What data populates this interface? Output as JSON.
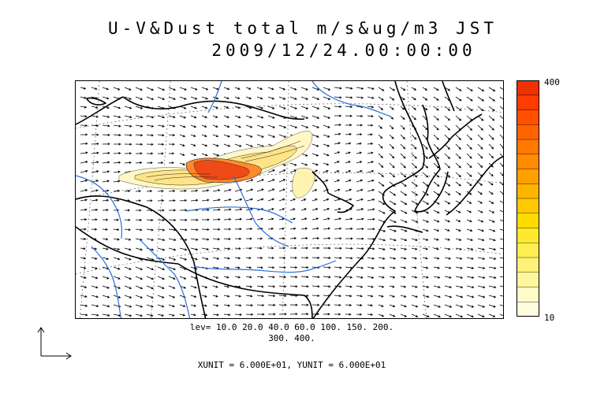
{
  "title": {
    "line1": "U-V&Dust total m/s&ug/m3 JST",
    "line2": "2009/12/24.00:00:00"
  },
  "colorbar": {
    "max_label": "400",
    "min_label": "10",
    "colors": [
      "#fffde0",
      "#fffbc8",
      "#fff7a0",
      "#fff27a",
      "#ffee50",
      "#ffe82e",
      "#ffdb00",
      "#ffc800",
      "#ffb400",
      "#ffa000",
      "#ff8c00",
      "#ff7800",
      "#ff6400",
      "#ff5000",
      "#ff3c00",
      "#f03000"
    ]
  },
  "legend": {
    "levels_line1": "lev= 10.0 20.0 40.0 60.0 100. 150. 200.",
    "levels_line2": "300. 400.",
    "units": "XUNIT = 6.000E+01, YUNIT = 6.000E+01"
  },
  "map_colors": {
    "coast": "#000000",
    "rivers": "#2a6fdc",
    "grid": "#555555",
    "dust_low": "#fff5b8",
    "dust_mid": "#ffd760",
    "dust_high": "#ff5a1e"
  }
}
